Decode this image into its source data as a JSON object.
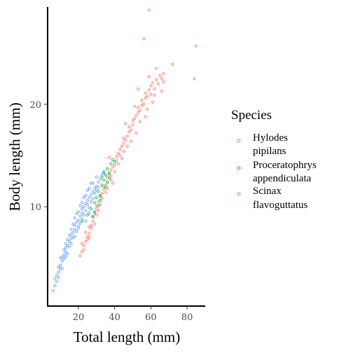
{
  "chart_data": {
    "type": "scatter",
    "xlabel": "Total length (mm)",
    "ylabel": "Body length (mm)",
    "xlim": [
      3,
      90
    ],
    "ylim": [
      0.3,
      29.5
    ],
    "xticks": [
      20,
      40,
      60,
      80
    ],
    "yticks": [
      10,
      20
    ],
    "legend": {
      "title": "Species",
      "position": "right",
      "entries": [
        {
          "line1": "Hylodes",
          "line2": "pipilans",
          "color": "#F8766D"
        },
        {
          "line1": "Proceratophrys",
          "line2": "appendiculata",
          "color": "#00BA38"
        },
        {
          "line1": "Scinax",
          "line2": "flavoguttatus",
          "color": "#619CFF"
        }
      ]
    },
    "series": [
      {
        "name": "Hylodes pipilans",
        "color": "#F8766D",
        "points": [
          [
            21,
            5.2
          ],
          [
            22,
            5.6
          ],
          [
            23,
            5.8
          ],
          [
            22,
            6.4
          ],
          [
            24,
            6.6
          ],
          [
            25,
            7.1
          ],
          [
            24,
            7.5
          ],
          [
            26,
            7.4
          ],
          [
            26,
            8.0
          ],
          [
            27,
            8.2
          ],
          [
            28,
            8.6
          ],
          [
            28,
            9.1
          ],
          [
            29,
            9.4
          ],
          [
            30,
            9.8
          ],
          [
            30,
            10.1
          ],
          [
            31,
            10.5
          ],
          [
            32,
            10.2
          ],
          [
            32,
            11.0
          ],
          [
            33,
            11.3
          ],
          [
            34,
            11.7
          ],
          [
            34,
            12.0
          ],
          [
            35,
            12.1
          ],
          [
            36,
            12.4
          ],
          [
            36,
            12.9
          ],
          [
            37,
            13.2
          ],
          [
            38,
            13.0
          ],
          [
            38,
            13.6
          ],
          [
            39,
            13.9
          ],
          [
            40,
            14.1
          ],
          [
            41,
            14.5
          ],
          [
            41,
            14.9
          ],
          [
            42,
            15.2
          ],
          [
            43,
            15.0
          ],
          [
            43,
            15.6
          ],
          [
            44,
            15.9
          ],
          [
            45,
            16.2
          ],
          [
            45,
            16.7
          ],
          [
            46,
            16.5
          ],
          [
            47,
            16.9
          ],
          [
            48,
            17.3
          ],
          [
            48,
            17.8
          ],
          [
            49,
            17.5
          ],
          [
            50,
            18.0
          ],
          [
            50,
            18.4
          ],
          [
            51,
            18.6
          ],
          [
            52,
            18.9
          ],
          [
            53,
            19.2
          ],
          [
            53,
            19.7
          ],
          [
            54,
            19.4
          ],
          [
            55,
            19.9
          ],
          [
            55,
            20.4
          ],
          [
            56,
            20.0
          ],
          [
            57,
            20.6
          ],
          [
            57,
            21.1
          ],
          [
            58,
            20.8
          ],
          [
            59,
            21.4
          ],
          [
            60,
            21.0
          ],
          [
            60,
            21.8
          ],
          [
            61,
            22.1
          ],
          [
            62,
            21.5
          ],
          [
            63,
            22.4
          ],
          [
            64,
            22.0
          ],
          [
            65,
            22.8
          ],
          [
            66,
            22.5
          ],
          [
            67,
            23.0
          ],
          [
            67,
            22.2
          ],
          [
            72,
            23.9
          ],
          [
            84,
            22.5
          ],
          [
            85,
            25.7
          ],
          [
            56,
            26.4
          ],
          [
            59,
            29.2
          ],
          [
            58,
            19.5
          ],
          [
            52,
            17.2
          ],
          [
            47,
            15.9
          ],
          [
            44,
            14.7
          ],
          [
            40,
            13.4
          ],
          [
            36,
            11.8
          ],
          [
            33,
            10.8
          ],
          [
            30,
            9.2
          ],
          [
            27,
            7.9
          ],
          [
            25,
            6.8
          ],
          [
            23,
            6.2
          ],
          [
            46,
            18.1
          ],
          [
            53,
            21.5
          ],
          [
            61,
            20.2
          ],
          [
            49,
            16.4
          ],
          [
            42,
            14.2
          ],
          [
            38,
            12.6
          ],
          [
            35,
            11.4
          ],
          [
            31,
            9.6
          ],
          [
            29,
            8.3
          ],
          [
            26,
            7.0
          ],
          [
            57,
            18.8
          ],
          [
            63,
            23.5
          ],
          [
            51,
            19.8
          ],
          [
            45,
            15.4
          ],
          [
            54,
            18.3
          ],
          [
            62,
            20.9
          ],
          [
            66,
            21.3
          ],
          [
            59,
            22.7
          ],
          [
            39,
            12.3
          ],
          [
            37,
            14.8
          ]
        ]
      },
      {
        "name": "Proceratophrys appendiculata",
        "color": "#00BA38",
        "points": [
          [
            22,
            8.6
          ],
          [
            25,
            9.2
          ],
          [
            27,
            9.8
          ],
          [
            28,
            9.0
          ],
          [
            29,
            10.4
          ],
          [
            30,
            10.9
          ],
          [
            31,
            11.5
          ],
          [
            32,
            11.1
          ],
          [
            33,
            12.1
          ],
          [
            34,
            12.6
          ],
          [
            35,
            13.1
          ],
          [
            36,
            13.7
          ],
          [
            37,
            13.3
          ],
          [
            38,
            14.2
          ],
          [
            39,
            14.6
          ],
          [
            40,
            14.4
          ],
          [
            33,
            12.9
          ],
          [
            35,
            11.9
          ],
          [
            31,
            10.1
          ],
          [
            36,
            12.4
          ],
          [
            34,
            13.4
          ],
          [
            29,
            9.5
          ],
          [
            37,
            12.8
          ],
          [
            32,
            10.6
          ]
        ]
      },
      {
        "name": "Scinax flavoguttatus",
        "color": "#619CFF",
        "points": [
          [
            6,
            1.8
          ],
          [
            7,
            2.3
          ],
          [
            7,
            3.0
          ],
          [
            8,
            3.3
          ],
          [
            9,
            3.6
          ],
          [
            9,
            4.1
          ],
          [
            10,
            4.3
          ],
          [
            11,
            4.7
          ],
          [
            11,
            5.1
          ],
          [
            12,
            5.3
          ],
          [
            13,
            5.6
          ],
          [
            13,
            6.0
          ],
          [
            14,
            6.2
          ],
          [
            15,
            6.6
          ],
          [
            16,
            6.9
          ],
          [
            16,
            7.3
          ],
          [
            17,
            7.5
          ],
          [
            18,
            7.8
          ],
          [
            18,
            8.2
          ],
          [
            19,
            8.5
          ],
          [
            20,
            8.7
          ],
          [
            21,
            9.1
          ],
          [
            22,
            9.4
          ],
          [
            22,
            9.8
          ],
          [
            23,
            10.0
          ],
          [
            24,
            10.3
          ],
          [
            25,
            10.6
          ],
          [
            26,
            10.9
          ],
          [
            27,
            11.2
          ],
          [
            28,
            11.5
          ],
          [
            29,
            11.8
          ],
          [
            30,
            12.0
          ],
          [
            31,
            12.4
          ],
          [
            32,
            12.7
          ],
          [
            33,
            13.1
          ],
          [
            34,
            13.3
          ],
          [
            8,
            2.7
          ],
          [
            10,
            3.9
          ],
          [
            12,
            4.9
          ],
          [
            14,
            5.4
          ],
          [
            15,
            6.1
          ],
          [
            17,
            7.0
          ],
          [
            19,
            7.6
          ],
          [
            20,
            8.1
          ],
          [
            21,
            8.4
          ],
          [
            23,
            9.2
          ],
          [
            24,
            9.6
          ],
          [
            25,
            10.2
          ],
          [
            26,
            9.9
          ],
          [
            27,
            10.5
          ],
          [
            28,
            10.8
          ],
          [
            29,
            11.3
          ],
          [
            30,
            11.6
          ],
          [
            31,
            11.9
          ],
          [
            12,
            5.8
          ],
          [
            14,
            6.8
          ],
          [
            16,
            7.8
          ],
          [
            18,
            8.9
          ],
          [
            20,
            9.5
          ],
          [
            22,
            10.4
          ],
          [
            24,
            11.1
          ],
          [
            26,
            11.8
          ],
          [
            28,
            12.3
          ],
          [
            30,
            12.9
          ],
          [
            10,
            5.0
          ],
          [
            13,
            6.4
          ],
          [
            15,
            7.2
          ],
          [
            17,
            8.3
          ],
          [
            19,
            9.3
          ],
          [
            21,
            10.1
          ],
          [
            23,
            10.9
          ],
          [
            25,
            11.6
          ],
          [
            27,
            12.3
          ],
          [
            11,
            4.0
          ],
          [
            9,
            3.1
          ],
          [
            16,
            6.4
          ],
          [
            18,
            7.1
          ],
          [
            20,
            7.9
          ],
          [
            22,
            8.8
          ],
          [
            24,
            8.6
          ],
          [
            26,
            9.4
          ],
          [
            13,
            5.1
          ]
        ]
      }
    ]
  }
}
